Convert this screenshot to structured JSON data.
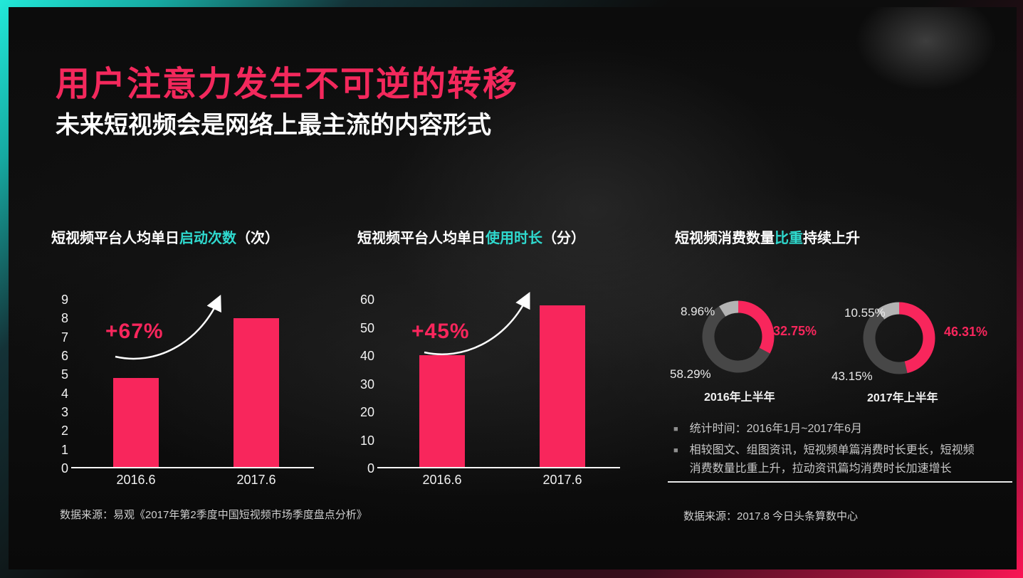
{
  "header": {
    "title": "用户注意力发生不可逆的转移",
    "subtitle": "未来短视频会是网络上最主流的内容形式"
  },
  "colors": {
    "accent_pink": "#F8265C",
    "accent_cyan": "#2FD9CE",
    "bar_pink": "#F8265C",
    "donut_dark": "#474747",
    "donut_light": "#B3B3B3",
    "border_teal": "#22E9D9",
    "border_pink": "#FB1454",
    "text_white": "#FFFFFF",
    "text_muted": "#C7C7C7"
  },
  "chart_data": [
    {
      "id": "launches",
      "type": "bar",
      "title_prefix": "短视频平台人均单日",
      "title_highlight": "启动次数",
      "title_suffix": "（次）",
      "categories": [
        "2016.6",
        "2017.6"
      ],
      "values": [
        4.8,
        8.0
      ],
      "ylim": [
        0,
        9
      ],
      "yticks": [
        0,
        1,
        2,
        3,
        4,
        5,
        6,
        7,
        8,
        9
      ],
      "growth_label": "+67%",
      "grid": false,
      "legend": "none"
    },
    {
      "id": "duration",
      "type": "bar",
      "title_prefix": "短视频平台人均单日",
      "title_highlight": "使用时长",
      "title_suffix": "（分）",
      "categories": [
        "2016.6",
        "2017.6"
      ],
      "values": [
        40,
        58
      ],
      "ylim": [
        0,
        60
      ],
      "yticks": [
        0,
        10,
        20,
        30,
        40,
        50,
        60
      ],
      "growth_label": "+45%",
      "grid": false,
      "legend": "none"
    },
    {
      "id": "share",
      "type": "pie",
      "title_prefix": "短视频消费数量",
      "title_highlight": "比重",
      "title_suffix": "持续上升",
      "donuts": [
        {
          "caption": "2016年上半年",
          "highlight_pct": 32.75,
          "dark_pct": 58.29,
          "light_pct": 8.96
        },
        {
          "caption": "2017年上半年",
          "highlight_pct": 46.31,
          "dark_pct": 43.15,
          "light_pct": 10.55
        }
      ]
    }
  ],
  "notes": {
    "items": [
      "统计时间：2016年1月~2017年6月",
      "相较图文、组图资讯，短视频单篇消费时长更长，短视频消费数量比重上升，拉动资讯篇均消费时长加速增长"
    ]
  },
  "sources": {
    "left": "数据来源：易观《2017年第2季度中国短视频市场季度盘点分析》",
    "right": "数据来源：2017.8 今日头条算数中心"
  }
}
